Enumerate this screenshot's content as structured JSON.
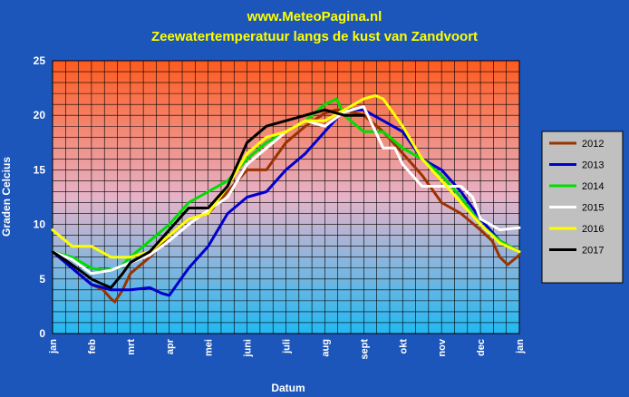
{
  "header": {
    "site": "www.MeteoPagina.nl",
    "title": "Zeewatertemperatuur langs de kust van Zandvoort"
  },
  "chart_data": {
    "type": "line",
    "title": "Zeewatertemperatuur langs de kust van Zandvoort",
    "xlabel": "Datum",
    "ylabel": "Graden Celcius",
    "ylim": [
      0,
      25
    ],
    "xlim": [
      0,
      12
    ],
    "x_unit": "months since 1 January",
    "y_ticks": [
      0,
      5,
      10,
      15,
      20,
      25
    ],
    "x_tick_labels": [
      "jan",
      "feb",
      "mrt",
      "apr",
      "mei",
      "juni",
      "juli",
      "aug",
      "sept",
      "okt",
      "nov",
      "dec",
      "jan"
    ],
    "grid": true,
    "legend_position": "right",
    "background": "vertical gradient from orange-red (top) to light blue (bottom)",
    "series": [
      {
        "name": "2012",
        "color": "#993300",
        "x": [
          0,
          0.5,
          1,
          1.3,
          1.5,
          1.6,
          1.8,
          2,
          2.5,
          3,
          3.5,
          4,
          4.5,
          5,
          5.5,
          6,
          6.5,
          7,
          7.3,
          7.5,
          8,
          8.5,
          9,
          9.5,
          10,
          10.5,
          11,
          11.3,
          11.5,
          11.7,
          12
        ],
        "y": [
          7.5,
          6,
          4.5,
          4,
          3.2,
          2.9,
          4,
          5.5,
          7,
          9,
          10.5,
          11,
          13,
          15,
          15,
          17.5,
          19,
          20.2,
          20.5,
          20.5,
          20,
          18.5,
          16.5,
          14.5,
          12,
          11,
          9.5,
          8.5,
          7,
          6.3,
          7.2
        ]
      },
      {
        "name": "2013",
        "color": "#0000cc",
        "x": [
          0,
          0.5,
          1,
          1.5,
          2,
          2.5,
          2.8,
          3,
          3.3,
          3.5,
          4,
          4.5,
          5,
          5.5,
          6,
          6.5,
          7,
          7.5,
          8,
          8.5,
          9,
          9.5,
          10,
          10.5,
          11,
          11.5,
          12
        ],
        "y": [
          7.5,
          6,
          4.5,
          4,
          4,
          4.2,
          3.7,
          3.5,
          5,
          6,
          8,
          11,
          12.5,
          13,
          15,
          16.5,
          18.5,
          20.5,
          20.5,
          19.5,
          18.5,
          16,
          15,
          13,
          10.5,
          8.5,
          7.5
        ]
      },
      {
        "name": "2014",
        "color": "#00dd00",
        "x": [
          0,
          0.5,
          1,
          1.3,
          1.7,
          2,
          2.5,
          3,
          3.5,
          4,
          4.5,
          5,
          5.5,
          6,
          6.5,
          7,
          7.3,
          7.5,
          8,
          8.5,
          9,
          9.5,
          10,
          10.5,
          11,
          11.5,
          12
        ],
        "y": [
          7.5,
          7,
          6,
          5.8,
          6,
          7,
          8.5,
          10,
          12,
          13,
          14,
          16,
          17.5,
          18.5,
          19.5,
          21,
          21.5,
          20,
          18.5,
          18.5,
          17,
          16,
          14.5,
          12.5,
          10,
          8.5,
          7.5
        ]
      },
      {
        "name": "2015",
        "color": "#ffffff",
        "x": [
          0,
          0.5,
          1,
          1.5,
          2,
          2.5,
          3,
          3.5,
          4,
          4.5,
          5,
          5.5,
          6,
          6.5,
          7,
          7.5,
          8,
          8.5,
          8.8,
          9,
          9.5,
          10,
          10.5,
          10.8,
          11,
          11.5,
          12
        ],
        "y": [
          7.5,
          6.8,
          5.5,
          5.8,
          6.5,
          7.2,
          8.5,
          10,
          11.3,
          12.5,
          15.5,
          17,
          18.5,
          19.5,
          19,
          20.3,
          20.8,
          17,
          17,
          15.5,
          13.5,
          13.5,
          13.5,
          12.5,
          10.5,
          9.5,
          9.7
        ]
      },
      {
        "name": "2016",
        "color": "#ffff00",
        "x": [
          0,
          0.5,
          1,
          1.5,
          2,
          2.5,
          3,
          3.5,
          4,
          4.5,
          5,
          5.5,
          6,
          6.5,
          7,
          7.5,
          8,
          8.3,
          8.5,
          9,
          9.5,
          10,
          10.5,
          11,
          11.5,
          12
        ],
        "y": [
          9.5,
          8,
          8,
          7,
          7,
          7.5,
          9,
          10.5,
          11,
          13.5,
          16.5,
          18,
          18.5,
          19.5,
          19.5,
          20.5,
          21.5,
          21.8,
          21.5,
          19,
          16,
          14,
          12,
          10,
          8.3,
          7.5
        ]
      },
      {
        "name": "2017",
        "color": "#000000",
        "x": [
          0,
          0.3,
          0.7,
          1,
          1.3,
          1.5,
          1.8,
          2,
          2.5,
          3,
          3.5,
          4,
          4.5,
          5,
          5.5,
          6,
          6.5,
          7,
          7.5,
          8
        ],
        "y": [
          7.5,
          6.8,
          5.8,
          5,
          4.5,
          4.2,
          5.5,
          6.5,
          7.5,
          9.5,
          11.5,
          11.5,
          13.5,
          17.5,
          19,
          19.5,
          20,
          20.5,
          20,
          20
        ]
      }
    ]
  }
}
